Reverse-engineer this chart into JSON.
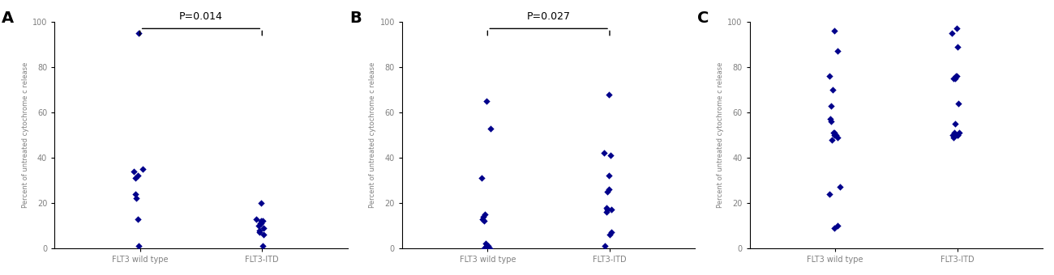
{
  "panel_A": {
    "label": "A",
    "pvalue": "P=0.014",
    "wt": [
      95,
      35,
      34,
      32,
      31,
      24,
      22,
      13,
      1
    ],
    "itd": [
      20,
      13,
      12,
      12,
      11,
      11,
      10,
      9,
      8,
      7,
      6,
      1
    ],
    "xticks": [
      "FLT3 wild type",
      "FLT3-ITD"
    ],
    "xtick_A": [
      "FLT 3 wild type",
      "FLT 3-ITD"
    ]
  },
  "panel_B": {
    "label": "B",
    "pvalue": "P=0.027",
    "wt": [
      65,
      53,
      31,
      15,
      14,
      13,
      12,
      2,
      1,
      1,
      0,
      0,
      0
    ],
    "itd": [
      68,
      42,
      41,
      32,
      26,
      25,
      18,
      17,
      17,
      16,
      7,
      6,
      1
    ],
    "xticks": [
      "FLT3 wild type",
      "FLT3-ITD"
    ]
  },
  "panel_C": {
    "label": "C",
    "wt": [
      96,
      87,
      76,
      70,
      63,
      57,
      56,
      51,
      51,
      50,
      50,
      49,
      48,
      27,
      24,
      10,
      9
    ],
    "itd": [
      97,
      95,
      89,
      76,
      76,
      75,
      75,
      64,
      55,
      51,
      51,
      50,
      50,
      50,
      49
    ],
    "xticks": [
      "FLT3 wild type",
      "FLT3-ITD"
    ]
  },
  "dot_color": "#00008B",
  "dot_size": 18,
  "ylabel": "Percent of untreated cytochrome c release",
  "ylim": [
    0,
    100
  ],
  "yticks": [
    0,
    20,
    40,
    60,
    80,
    100
  ],
  "background_color": "#ffffff",
  "marker": "D"
}
